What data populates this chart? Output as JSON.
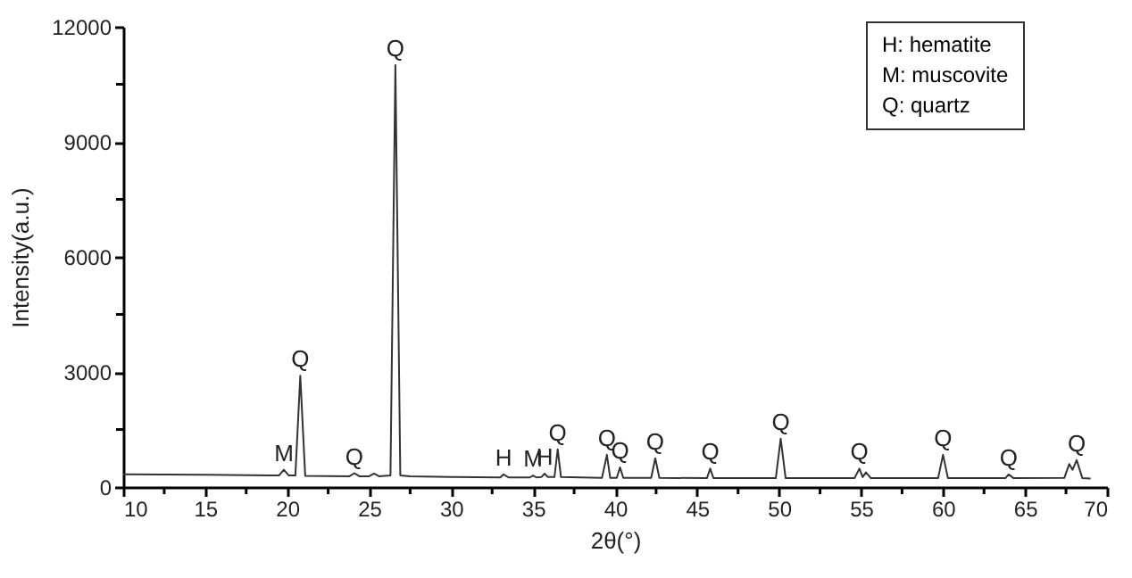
{
  "chart_data": {
    "type": "line",
    "xlabel": "2θ(°)",
    "ylabel": "Intensity(a.u.)",
    "x": [
      10,
      15,
      19,
      19.5,
      19.8,
      20.1,
      20.5,
      20.8,
      21.1,
      23.8,
      24.1,
      24.4,
      25.0,
      25.3,
      25.6,
      26.3,
      26.6,
      26.9,
      27.5,
      30,
      33,
      33.2,
      33.5,
      34.8,
      35.0,
      35.2,
      35.5,
      35.7,
      35.9,
      36.3,
      36.5,
      36.7,
      39.2,
      39.5,
      39.7,
      40.1,
      40.3,
      40.5,
      42.2,
      42.45,
      42.7,
      45.6,
      45.8,
      46.0,
      49.8,
      50.1,
      50.4,
      54.6,
      54.9,
      55.1,
      55.3,
      55.6,
      59.7,
      60.0,
      60.3,
      63.8,
      64.0,
      64.3,
      67.4,
      67.7,
      67.9,
      68.15,
      68.5,
      69
    ],
    "series": [
      {
        "color": "#333333",
        "values": [
          330,
          320,
          300,
          300,
          450,
          300,
          300,
          2900,
          290,
          280,
          360,
          280,
          280,
          350,
          280,
          300,
          11000,
          300,
          280,
          260,
          250,
          330,
          250,
          250,
          300,
          250,
          260,
          350,
          260,
          260,
          980,
          260,
          240,
          840,
          240,
          240,
          510,
          240,
          240,
          750,
          240,
          230,
          480,
          230,
          230,
          1260,
          230,
          230,
          480,
          260,
          380,
          230,
          230,
          840,
          230,
          230,
          330,
          230,
          240,
          600,
          450,
          700,
          230,
          220
        ]
      }
    ],
    "xlim": [
      10,
      70
    ],
    "ylim": [
      0,
      12000
    ],
    "xticks": [
      10,
      {
        "value": 12.5,
        "label": null
      },
      15,
      {
        "value": 17.5,
        "label": null
      },
      20,
      {
        "value": 22.5,
        "label": null
      },
      25,
      {
        "value": 27.5,
        "label": null
      },
      30,
      {
        "value": 32.5,
        "label": null
      },
      35,
      {
        "value": 37.5,
        "label": null
      },
      40,
      {
        "value": 42.5,
        "label": null
      },
      45,
      {
        "value": 47.5,
        "label": null
      },
      50,
      {
        "value": 52.5,
        "label": null
      },
      55,
      {
        "value": 57.5,
        "label": null
      },
      60,
      {
        "value": 62.5,
        "label": null
      },
      65,
      {
        "value": 67.5,
        "label": null
      },
      70
    ],
    "yticks": [
      0,
      {
        "value": 1500,
        "label": null
      },
      3000,
      {
        "value": 4500,
        "label": null
      },
      6000,
      {
        "value": 7500,
        "label": null
      },
      9000,
      {
        "value": 10500,
        "label": null
      },
      12000
    ],
    "marker": "none",
    "line_style": "solid",
    "annotations": [
      {
        "text": "M",
        "x": 19.8,
        "y": 450
      },
      {
        "text": "Q",
        "x": 20.8,
        "y": 2900
      },
      {
        "text": "Q",
        "x": 24.1,
        "y": 360
      },
      {
        "text": "Q",
        "x": 26.6,
        "y": 11000
      },
      {
        "text": "H",
        "x": 33.2,
        "y": 330
      },
      {
        "text": "M",
        "x": 35.0,
        "y": 300
      },
      {
        "text": "H",
        "x": 35.7,
        "y": 350
      },
      {
        "text": "Q",
        "x": 36.5,
        "y": 980
      },
      {
        "text": "Q",
        "x": 39.5,
        "y": 840
      },
      {
        "text": "Q",
        "x": 40.3,
        "y": 510
      },
      {
        "text": "Q",
        "x": 42.45,
        "y": 750
      },
      {
        "text": "Q",
        "x": 45.8,
        "y": 480
      },
      {
        "text": "Q",
        "x": 50.1,
        "y": 1260
      },
      {
        "text": "Q",
        "x": 54.9,
        "y": 480
      },
      {
        "text": "Q",
        "x": 60.0,
        "y": 840
      },
      {
        "text": "Q",
        "x": 64.0,
        "y": 330
      },
      {
        "text": "Q",
        "x": 68.15,
        "y": 700
      },
      "H: hematite",
      "M: muscovite",
      "Q: quartz"
    ]
  }
}
